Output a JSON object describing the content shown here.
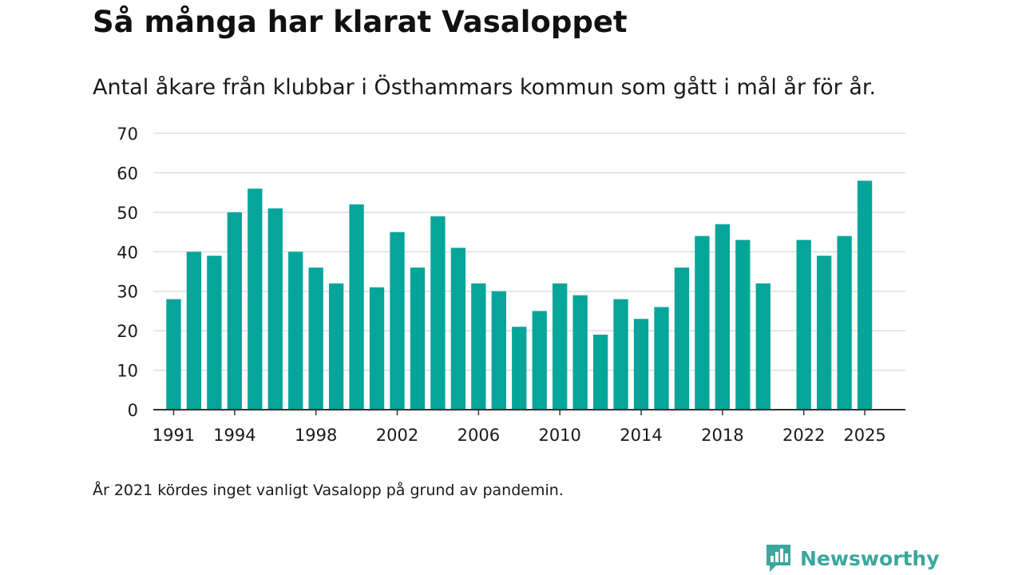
{
  "title": "Så många har klarat Vasaloppet",
  "subtitle": "Antal åkare från klubbar i Östhammars kommun som gått i mål år för år.",
  "footnote": "År 2021 kördes inget vanligt Vasalopp på grund av pandemin.",
  "brand": {
    "name": "Newsworthy",
    "logo_icon": "newsworthy-logo-icon"
  },
  "colors": {
    "bar": "#06a59a",
    "grid": "#dedede",
    "axis": "#333333",
    "text": "#1a1a1a",
    "brand": "#3aa79d"
  },
  "chart_data": {
    "type": "bar",
    "title": "Så många har klarat Vasaloppet",
    "subtitle": "Antal åkare från klubbar i Östhammars kommun som gått i mål år för år.",
    "xlabel": "",
    "ylabel": "",
    "ylim": [
      0,
      70
    ],
    "yticks": [
      0,
      10,
      20,
      30,
      40,
      50,
      60,
      70
    ],
    "xlim": [
      1990,
      2027
    ],
    "xticks": [
      1991,
      1994,
      1998,
      2002,
      2006,
      2010,
      2014,
      2018,
      2022,
      2025
    ],
    "grid": true,
    "categories": [
      1991,
      1992,
      1993,
      1994,
      1995,
      1996,
      1997,
      1998,
      1999,
      2000,
      2001,
      2002,
      2003,
      2004,
      2005,
      2006,
      2007,
      2008,
      2009,
      2010,
      2011,
      2012,
      2013,
      2014,
      2015,
      2016,
      2017,
      2018,
      2019,
      2020,
      2021,
      2022,
      2023,
      2024,
      2025
    ],
    "values": [
      28,
      40,
      39,
      50,
      56,
      51,
      40,
      36,
      32,
      52,
      31,
      45,
      36,
      49,
      41,
      32,
      30,
      21,
      25,
      32,
      29,
      19,
      28,
      23,
      26,
      36,
      44,
      47,
      43,
      32,
      null,
      43,
      39,
      44,
      58
    ]
  }
}
